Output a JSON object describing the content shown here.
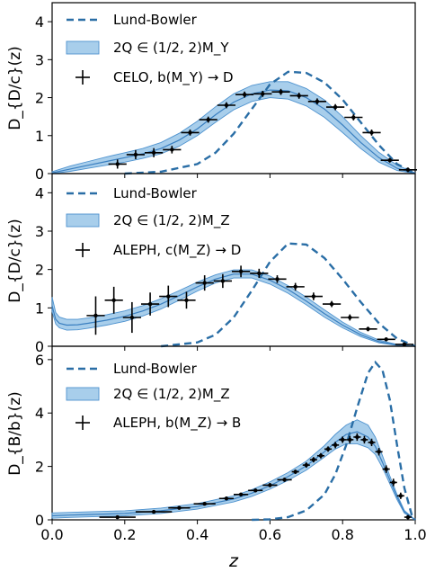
{
  "chart_data": [
    {
      "type": "line",
      "ylabel": "D_{D/c}(z)",
      "xlabel": "",
      "xlim": [
        0.0,
        1.0
      ],
      "ylim": [
        0,
        4.5
      ],
      "yticks": [
        0,
        1,
        2,
        3,
        4
      ],
      "ytick_labels": [
        "0",
        "1",
        "2",
        "3",
        "4"
      ],
      "legend_position": "top-left",
      "legend": [
        "Lund-Bowler",
        "2Q ∈ (1/2, 2)M_Y",
        "CELO, b(M_Y) → D"
      ],
      "series": [
        {
          "name": "Lund-Bowler",
          "x": [
            0.2,
            0.3,
            0.4,
            0.45,
            0.5,
            0.55,
            0.6,
            0.65,
            0.7,
            0.75,
            0.8,
            0.85,
            0.9,
            0.95,
            1.0
          ],
          "y": [
            0.0,
            0.05,
            0.25,
            0.55,
            1.05,
            1.7,
            2.35,
            2.68,
            2.65,
            2.4,
            1.95,
            1.35,
            0.75,
            0.25,
            0.0
          ]
        },
        {
          "name": "2Q ∈ (1/2, 2)M_Y",
          "x": [
            0.0,
            0.05,
            0.1,
            0.15,
            0.2,
            0.25,
            0.3,
            0.35,
            0.4,
            0.45,
            0.5,
            0.55,
            0.6,
            0.65,
            0.7,
            0.75,
            0.8,
            0.85,
            0.9,
            0.95,
            1.0
          ],
          "y": [
            0.02,
            0.12,
            0.22,
            0.32,
            0.42,
            0.52,
            0.66,
            0.88,
            1.18,
            1.55,
            1.88,
            2.1,
            2.2,
            2.18,
            2.0,
            1.7,
            1.28,
            0.82,
            0.42,
            0.14,
            0.0
          ],
          "y_low": [
            0.0,
            0.06,
            0.14,
            0.22,
            0.3,
            0.4,
            0.52,
            0.72,
            1.0,
            1.35,
            1.68,
            1.9,
            2.0,
            1.96,
            1.78,
            1.48,
            1.08,
            0.66,
            0.3,
            0.08,
            0.0
          ],
          "y_high": [
            0.05,
            0.2,
            0.32,
            0.44,
            0.55,
            0.66,
            0.82,
            1.06,
            1.38,
            1.76,
            2.1,
            2.32,
            2.42,
            2.42,
            2.24,
            1.94,
            1.5,
            1.0,
            0.56,
            0.22,
            0.02
          ]
        },
        {
          "name": "CELO, b(M_Y) → D",
          "x": [
            0.18,
            0.23,
            0.28,
            0.33,
            0.38,
            0.43,
            0.48,
            0.53,
            0.58,
            0.63,
            0.68,
            0.73,
            0.78,
            0.83,
            0.88,
            0.93,
            0.98
          ],
          "y": [
            0.25,
            0.5,
            0.55,
            0.63,
            1.08,
            1.42,
            1.8,
            2.08,
            2.1,
            2.15,
            2.05,
            1.9,
            1.75,
            1.48,
            1.08,
            0.35,
            0.1
          ],
          "yerr": [
            0.12,
            0.12,
            0.12,
            0.1,
            0.08,
            0.08,
            0.08,
            0.08,
            0.08,
            0.08,
            0.08,
            0.08,
            0.08,
            0.08,
            0.08,
            0.06,
            0.06
          ],
          "xerr": [
            0.025,
            0.025,
            0.025,
            0.025,
            0.025,
            0.025,
            0.025,
            0.025,
            0.025,
            0.025,
            0.025,
            0.025,
            0.025,
            0.025,
            0.025,
            0.025,
            0.025
          ]
        }
      ]
    },
    {
      "type": "line",
      "ylabel": "D_{D/c}(z)",
      "xlabel": "",
      "xlim": [
        0.0,
        1.0
      ],
      "ylim": [
        0,
        4.5
      ],
      "yticks": [
        0,
        1,
        2,
        3,
        4
      ],
      "ytick_labels": [
        "0",
        "1",
        "2",
        "3",
        "4"
      ],
      "legend_position": "top-left",
      "legend": [
        "Lund-Bowler",
        "2Q ∈ (1/2, 2)M_Z",
        "ALEPH, c(M_Z) → D"
      ],
      "series": [
        {
          "name": "Lund-Bowler",
          "x": [
            0.3,
            0.4,
            0.45,
            0.5,
            0.55,
            0.6,
            0.65,
            0.7,
            0.75,
            0.8,
            0.85,
            0.9,
            0.95,
            1.0
          ],
          "y": [
            0.0,
            0.1,
            0.3,
            0.75,
            1.45,
            2.2,
            2.68,
            2.65,
            2.3,
            1.75,
            1.15,
            0.6,
            0.2,
            0.0
          ]
        },
        {
          "name": "2Q ∈ (1/2, 2)M_Z",
          "x": [
            0.0,
            0.01,
            0.02,
            0.04,
            0.07,
            0.1,
            0.15,
            0.2,
            0.25,
            0.3,
            0.35,
            0.4,
            0.45,
            0.5,
            0.55,
            0.6,
            0.65,
            0.7,
            0.75,
            0.8,
            0.85,
            0.9,
            0.95,
            1.0
          ],
          "y": [
            1.05,
            0.7,
            0.6,
            0.55,
            0.56,
            0.6,
            0.68,
            0.78,
            0.92,
            1.1,
            1.32,
            1.55,
            1.75,
            1.88,
            1.88,
            1.72,
            1.48,
            1.18,
            0.85,
            0.55,
            0.3,
            0.12,
            0.03,
            0.0
          ],
          "y_low": [
            0.9,
            0.58,
            0.48,
            0.42,
            0.43,
            0.47,
            0.55,
            0.65,
            0.79,
            0.97,
            1.2,
            1.44,
            1.65,
            1.78,
            1.78,
            1.62,
            1.38,
            1.08,
            0.76,
            0.48,
            0.25,
            0.09,
            0.02,
            0.0
          ],
          "y_high": [
            1.28,
            0.88,
            0.76,
            0.7,
            0.7,
            0.74,
            0.82,
            0.92,
            1.06,
            1.24,
            1.45,
            1.67,
            1.86,
            1.99,
            1.99,
            1.83,
            1.58,
            1.28,
            0.95,
            0.63,
            0.36,
            0.16,
            0.05,
            0.0
          ]
        },
        {
          "name": "ALEPH, c(M_Z) → D",
          "x": [
            0.12,
            0.17,
            0.22,
            0.27,
            0.32,
            0.37,
            0.42,
            0.47,
            0.52,
            0.57,
            0.62,
            0.67,
            0.72,
            0.77,
            0.82,
            0.87,
            0.92,
            0.97
          ],
          "y": [
            0.8,
            1.2,
            0.75,
            1.1,
            1.3,
            1.2,
            1.65,
            1.7,
            1.95,
            1.9,
            1.75,
            1.55,
            1.3,
            1.1,
            0.75,
            0.45,
            0.18,
            0.05
          ],
          "yerr": [
            0.5,
            0.35,
            0.4,
            0.3,
            0.28,
            0.22,
            0.2,
            0.18,
            0.15,
            0.12,
            0.1,
            0.1,
            0.1,
            0.08,
            0.08,
            0.06,
            0.05,
            0.04
          ],
          "xerr": [
            0.025,
            0.025,
            0.025,
            0.025,
            0.025,
            0.025,
            0.025,
            0.025,
            0.025,
            0.025,
            0.025,
            0.025,
            0.025,
            0.025,
            0.025,
            0.025,
            0.025,
            0.025
          ]
        }
      ]
    },
    {
      "type": "line",
      "ylabel": "D_{B/b}(z)",
      "xlabel": "z",
      "xlim": [
        0.0,
        1.0
      ],
      "ylim": [
        0,
        6.5
      ],
      "yticks": [
        0,
        2,
        4,
        6
      ],
      "ytick_labels": [
        "0",
        "2",
        "4",
        "6"
      ],
      "xticks": [
        0.0,
        0.2,
        0.4,
        0.6,
        0.8,
        1.0
      ],
      "xtick_labels": [
        "0.0",
        "0.2",
        "0.4",
        "0.6",
        "0.8",
        "1.0"
      ],
      "legend_position": "top-left",
      "legend": [
        "Lund-Bowler",
        "2Q ∈ (1/2, 2)M_Z",
        "ALEPH, b(M_Z) → B"
      ],
      "series": [
        {
          "name": "Lund-Bowler",
          "x": [
            0.55,
            0.6,
            0.65,
            0.7,
            0.75,
            0.78,
            0.81,
            0.84,
            0.87,
            0.89,
            0.91,
            0.93,
            0.95,
            0.97,
            0.99,
            1.0
          ],
          "y": [
            0.0,
            0.02,
            0.1,
            0.35,
            0.95,
            1.7,
            2.8,
            4.2,
            5.5,
            5.9,
            5.6,
            4.5,
            2.8,
            1.2,
            0.2,
            0.0
          ]
        },
        {
          "name": "2Q ∈ (1/2, 2)M_Z",
          "x": [
            0.0,
            0.05,
            0.1,
            0.2,
            0.3,
            0.4,
            0.5,
            0.55,
            0.6,
            0.65,
            0.7,
            0.75,
            0.78,
            0.81,
            0.84,
            0.87,
            0.89,
            0.91,
            0.93,
            0.95,
            0.97,
            1.0
          ],
          "y": [
            0.15,
            0.18,
            0.2,
            0.24,
            0.34,
            0.5,
            0.78,
            1.0,
            1.28,
            1.62,
            2.02,
            2.55,
            2.9,
            3.2,
            3.3,
            3.1,
            2.75,
            2.15,
            1.5,
            0.85,
            0.3,
            0.0
          ],
          "y_low": [
            0.06,
            0.09,
            0.11,
            0.15,
            0.24,
            0.4,
            0.67,
            0.88,
            1.15,
            1.48,
            1.86,
            2.35,
            2.65,
            2.85,
            2.85,
            2.7,
            2.45,
            1.95,
            1.35,
            0.75,
            0.25,
            0.0
          ],
          "y_high": [
            0.26,
            0.28,
            0.3,
            0.34,
            0.44,
            0.61,
            0.9,
            1.13,
            1.42,
            1.77,
            2.2,
            2.78,
            3.2,
            3.55,
            3.75,
            3.55,
            3.1,
            2.4,
            1.65,
            0.95,
            0.35,
            0.0
          ]
        },
        {
          "name": "ALEPH, b(M_Z) → B",
          "x": [
            0.18,
            0.28,
            0.35,
            0.42,
            0.48,
            0.52,
            0.56,
            0.6,
            0.64,
            0.67,
            0.7,
            0.72,
            0.74,
            0.76,
            0.78,
            0.8,
            0.82,
            0.84,
            0.86,
            0.88,
            0.9,
            0.92,
            0.94,
            0.96,
            0.98
          ],
          "y": [
            0.1,
            0.3,
            0.45,
            0.6,
            0.8,
            0.95,
            1.1,
            1.3,
            1.5,
            1.8,
            2.05,
            2.25,
            2.4,
            2.65,
            2.8,
            3.0,
            3.0,
            3.1,
            3.0,
            2.9,
            2.55,
            1.9,
            1.4,
            0.9,
            0.1
          ],
          "yerr": [
            0.06,
            0.06,
            0.06,
            0.06,
            0.06,
            0.06,
            0.07,
            0.08,
            0.08,
            0.08,
            0.1,
            0.1,
            0.1,
            0.1,
            0.12,
            0.12,
            0.14,
            0.14,
            0.14,
            0.14,
            0.14,
            0.14,
            0.14,
            0.12,
            0.08
          ],
          "xerr": [
            0.05,
            0.05,
            0.03,
            0.03,
            0.02,
            0.02,
            0.02,
            0.02,
            0.02,
            0.01,
            0.01,
            0.01,
            0.01,
            0.01,
            0.01,
            0.01,
            0.01,
            0.01,
            0.01,
            0.01,
            0.01,
            0.01,
            0.01,
            0.01,
            0.01
          ]
        }
      ]
    }
  ],
  "colors": {
    "lund_bowler": "#2a6ea6",
    "band_fill": "#8bbde4",
    "band_edge": "#4f93cf",
    "data_points": "#000000"
  }
}
